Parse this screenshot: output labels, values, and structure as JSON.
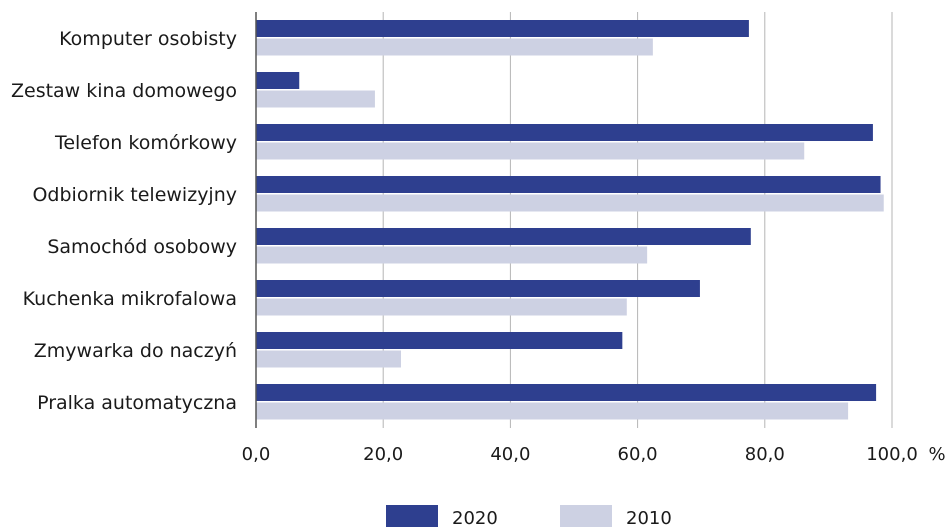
{
  "chart_data": {
    "type": "bar",
    "orientation": "horizontal",
    "categories": [
      "Komputer osobisty",
      "Zestaw kina domowego",
      "Telefon komórkowy",
      "Odbiornik telewizyjny",
      "Samochód osobowy",
      "Kuchenka mikrofalowa",
      "Zmywarka do naczyń",
      "Pralka automatyczna"
    ],
    "series": [
      {
        "name": "2020",
        "color": "#2e3f8f",
        "values": [
          77.5,
          6.8,
          97.0,
          98.2,
          77.8,
          69.8,
          57.6,
          97.5
        ]
      },
      {
        "name": "2010",
        "color": "#cdd1e3",
        "values": [
          62.4,
          18.7,
          86.2,
          98.7,
          61.5,
          58.3,
          22.8,
          93.1
        ]
      }
    ],
    "xlim": [
      0,
      100
    ],
    "xticks": [
      "0,0",
      "20,0",
      "40,0",
      "60,0",
      "80,0",
      "100,0"
    ],
    "xtick_values": [
      0,
      20,
      40,
      60,
      80,
      100
    ],
    "unit": "%",
    "grid": "vertical",
    "legend_position": "bottom"
  }
}
